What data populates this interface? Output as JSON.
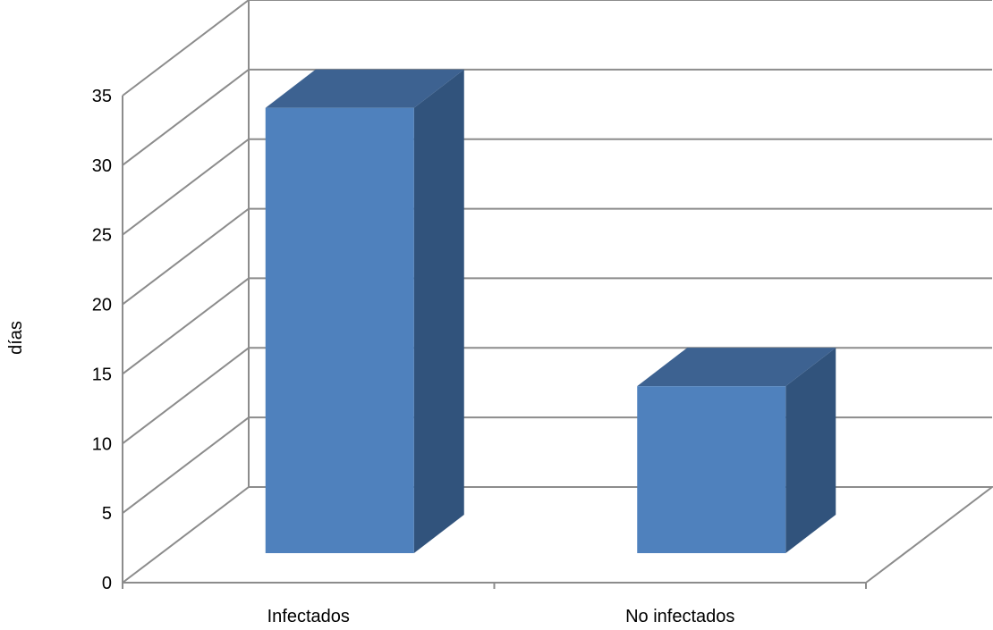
{
  "chart_data": {
    "type": "bar",
    "style": "3d-column",
    "categories": [
      "Infectados",
      "No infectados"
    ],
    "values": [
      32,
      12
    ],
    "title": "",
    "xlabel": "",
    "ylabel": "días",
    "ylim": [
      0,
      35
    ],
    "yticks": [
      0,
      5,
      10,
      15,
      20,
      25,
      30,
      35
    ],
    "grid": true,
    "legend": "none"
  },
  "colors": {
    "bar_front": "#4f81bd",
    "bar_top": "#3d6291",
    "bar_side": "#31537c",
    "grid": "#8c8c8c",
    "background": "#ffffff"
  }
}
